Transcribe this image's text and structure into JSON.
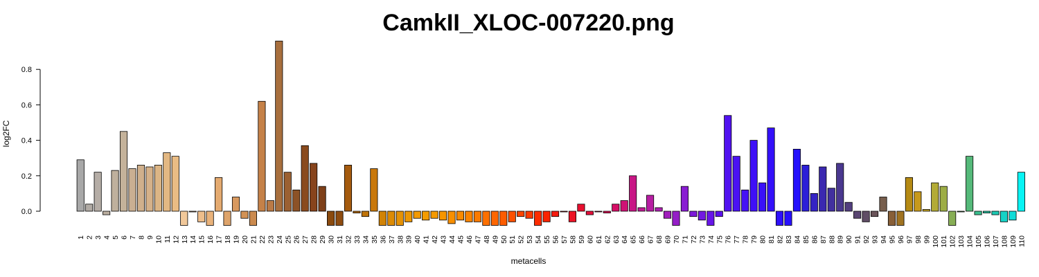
{
  "chart_data": {
    "type": "bar",
    "title": "CamkII_XLOC-007220.png",
    "xlabel": "metacells",
    "ylabel": "log2FC",
    "ylim": [
      -0.08,
      0.96
    ],
    "yticks": [
      0.0,
      0.2,
      0.4,
      0.6,
      0.8
    ],
    "ytick_labels": [
      "0.0",
      "0.2",
      "0.4",
      "0.6",
      "0.8"
    ],
    "grid": false,
    "legend": "none",
    "categories": [
      "1",
      "2",
      "3",
      "4",
      "5",
      "6",
      "7",
      "8",
      "9",
      "10",
      "11",
      "12",
      "13",
      "14",
      "15",
      "16",
      "17",
      "18",
      "19",
      "20",
      "21",
      "22",
      "23",
      "24",
      "25",
      "26",
      "27",
      "28",
      "29",
      "30",
      "31",
      "32",
      "33",
      "34",
      "35",
      "36",
      "37",
      "38",
      "39",
      "40",
      "41",
      "42",
      "43",
      "44",
      "45",
      "46",
      "47",
      "48",
      "49",
      "50",
      "51",
      "52",
      "53",
      "54",
      "55",
      "56",
      "57",
      "58",
      "59",
      "60",
      "61",
      "62",
      "63",
      "64",
      "65",
      "66",
      "67",
      "68",
      "69",
      "70",
      "71",
      "72",
      "73",
      "74",
      "75",
      "76",
      "77",
      "78",
      "79",
      "80",
      "81",
      "82",
      "83",
      "84",
      "85",
      "86",
      "87",
      "88",
      "89",
      "90",
      "91",
      "92",
      "93",
      "94",
      "95",
      "96",
      "97",
      "98",
      "99",
      "100",
      "101",
      "102",
      "103",
      "104",
      "105",
      "106",
      "107",
      "108",
      "109",
      "110"
    ],
    "values": [
      0.29,
      0.04,
      0.22,
      -0.02,
      0.23,
      0.45,
      0.24,
      0.26,
      0.25,
      0.26,
      0.33,
      0.31,
      -0.08,
      0.0,
      -0.06,
      -0.08,
      0.19,
      -0.08,
      0.08,
      -0.04,
      -0.08,
      0.62,
      0.06,
      0.96,
      0.22,
      0.12,
      0.37,
      0.27,
      0.14,
      -0.08,
      -0.08,
      0.26,
      -0.01,
      -0.03,
      0.24,
      -0.08,
      -0.08,
      -0.08,
      -0.06,
      -0.04,
      -0.05,
      -0.04,
      -0.05,
      -0.07,
      -0.05,
      -0.06,
      -0.06,
      -0.08,
      -0.08,
      -0.08,
      -0.06,
      -0.03,
      -0.04,
      -0.08,
      -0.06,
      -0.03,
      0.0,
      -0.06,
      0.04,
      -0.02,
      0.0,
      -0.01,
      0.04,
      0.06,
      0.2,
      0.02,
      0.09,
      0.02,
      -0.04,
      -0.08,
      0.14,
      -0.03,
      -0.05,
      -0.08,
      -0.03,
      0.54,
      0.31,
      0.12,
      0.4,
      0.16,
      0.47,
      -0.08,
      -0.08,
      0.35,
      0.26,
      0.1,
      0.25,
      0.13,
      0.27,
      0.05,
      -0.04,
      -0.06,
      -0.03,
      0.08,
      -0.08,
      -0.08,
      0.19,
      0.11,
      0.01,
      0.16,
      0.14,
      -0.08,
      0.0,
      0.31,
      -0.02,
      -0.01,
      -0.02,
      -0.06,
      -0.05,
      0.22
    ],
    "colors": [
      "#a8a8a8",
      "#b1aba5",
      "#b5ada6",
      "#baaea0",
      "#bfb09d",
      "#c4b29a",
      "#caaf92",
      "#d0b08c",
      "#d5b189",
      "#dcb585",
      "#e3b883",
      "#eabc84",
      "#f1c89a",
      "#f1c392",
      "#eebe8b",
      "#e9b27a",
      "#e4aa70",
      "#dea46b",
      "#d8995f",
      "#d29255",
      "#cb8a4e",
      "#c58148",
      "#ba7a46",
      "#a86f3e",
      "#9b6032",
      "#8c5227",
      "#8a4b1e",
      "#87441c",
      "#7e4019",
      "#8a4a0e",
      "#8e4c10",
      "#a55b0e",
      "#b56a0a",
      "#c0740a",
      "#c9780a",
      "#d18307",
      "#dc8b05",
      "#e59206",
      "#ec9705",
      "#f29a04",
      "#f49c02",
      "#f59a00",
      "#f79600",
      "#f88f00",
      "#f98a00",
      "#fa8300",
      "#fb7a00",
      "#fc7000",
      "#fd6600",
      "#fd5c00",
      "#fd5000",
      "#fd4500",
      "#fd3900",
      "#fd2c00",
      "#fa2300",
      "#f61c10",
      "#f1161c",
      "#ec1325",
      "#e8102f",
      "#e40f3a",
      "#e00e45",
      "#db0e55",
      "#d50f66",
      "#cf1275",
      "#c81685",
      "#c01b94",
      "#b71ea3",
      "#ad20b0",
      "#a11fbc",
      "#951ec7",
      "#891dd2",
      "#7d1ad9",
      "#721ae2",
      "#6716e8",
      "#5c12ec",
      "#5112f0",
      "#4a12f3",
      "#4512f5",
      "#3f10f7",
      "#3a10f9",
      "#3410fa",
      "#2e10fb",
      "#2810fc",
      "#2410fc",
      "#2c1fd8",
      "#3423c4",
      "#3b28b0",
      "#42309f",
      "#4a388f",
      "#523e7f",
      "#5a4672",
      "#604e66",
      "#6a5459",
      "#775e4d",
      "#885f38",
      "#a07321",
      "#b58a14",
      "#c7991c",
      "#c5a424",
      "#b3ab36",
      "#9dad46",
      "#87ae55",
      "#6fb365",
      "#55b97a",
      "#3abe8e",
      "#28c4a2",
      "#1ecab4",
      "#16d2c6",
      "#10dcd8",
      "#08f4f4"
    ]
  }
}
